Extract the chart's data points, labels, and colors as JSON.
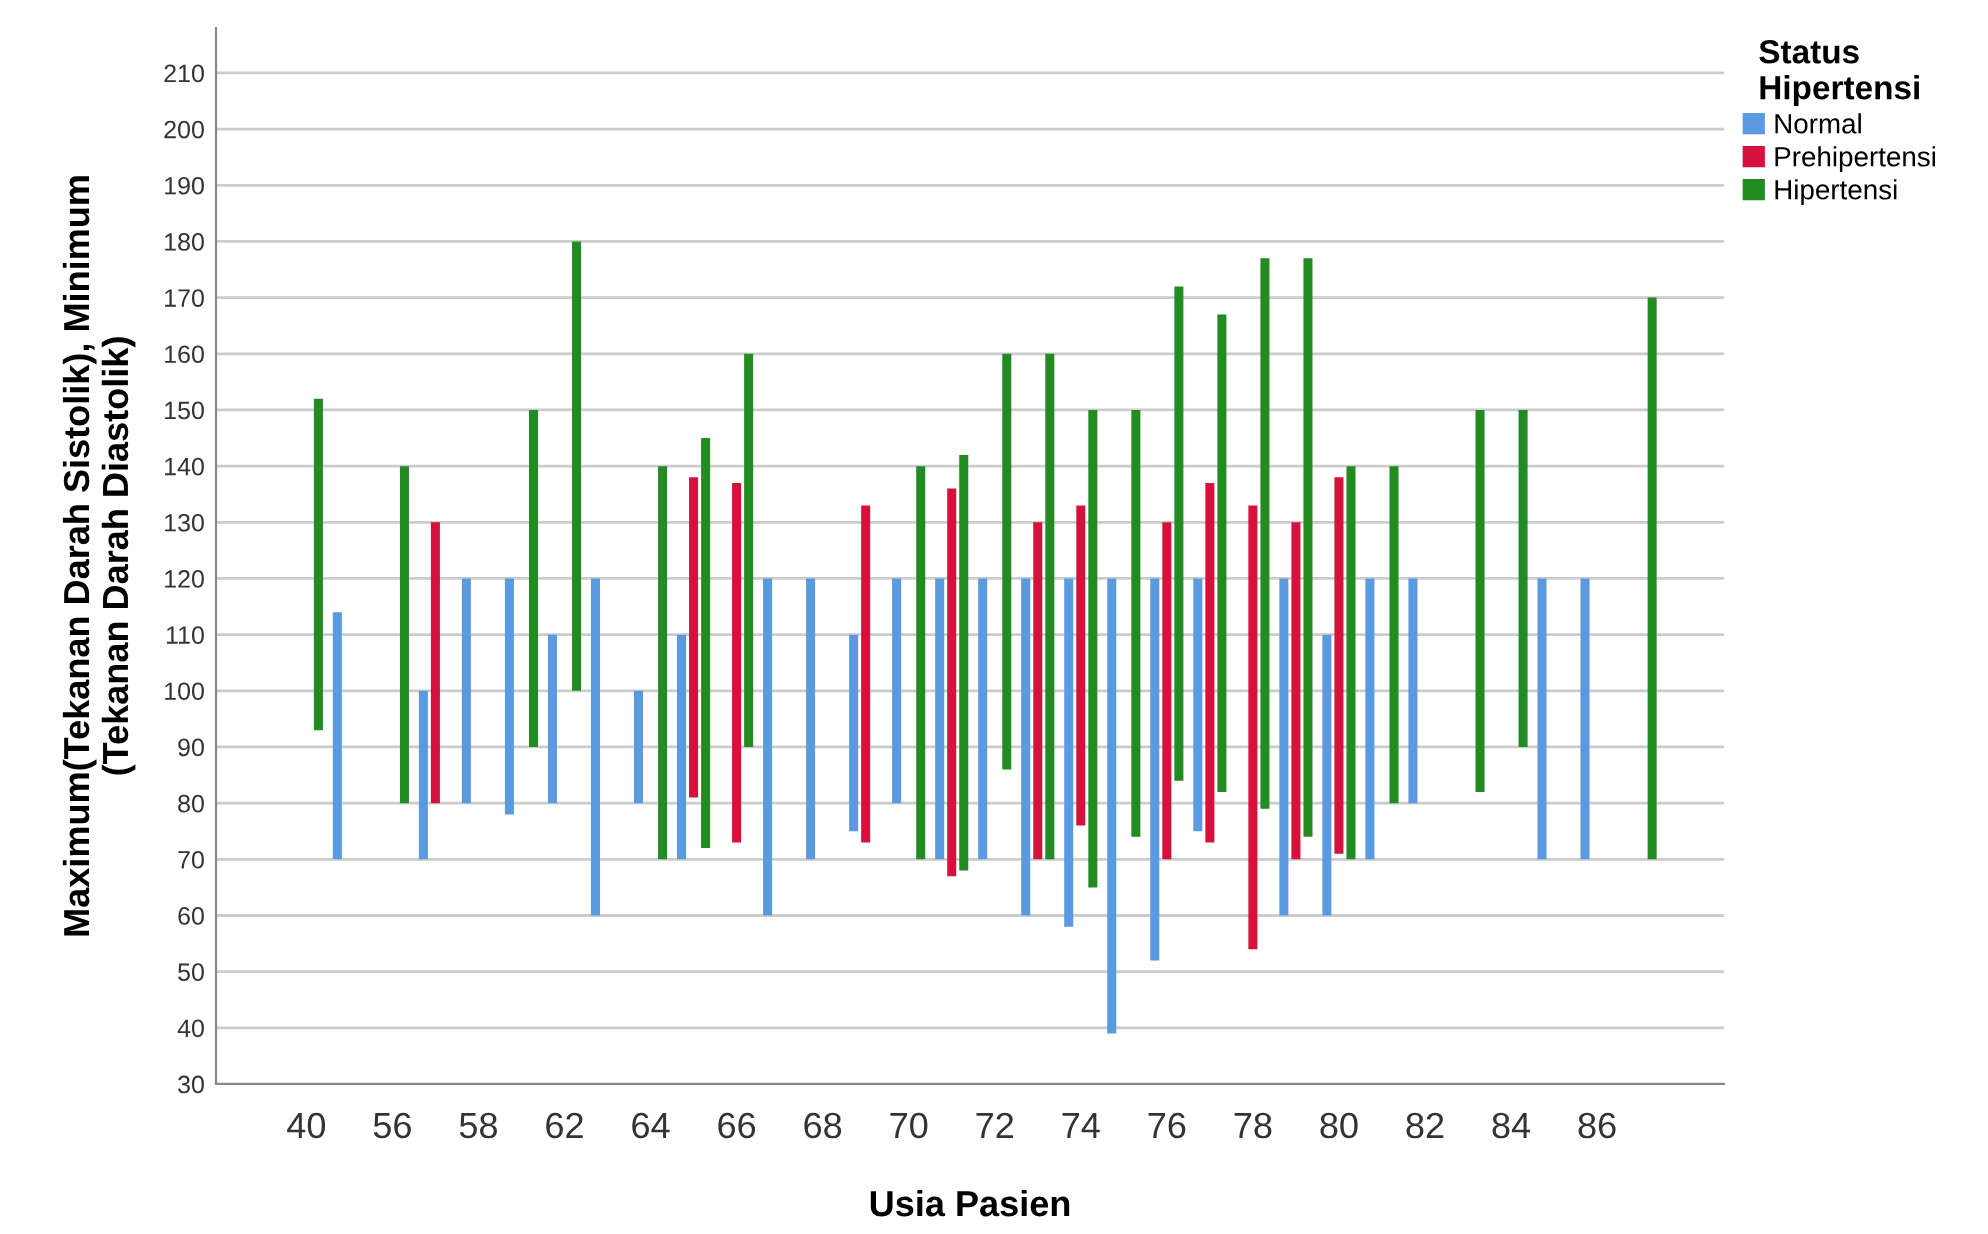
{
  "chart_data": {
    "type": "bar",
    "xlabel": "Usia Pasien",
    "ylabel": "Maximum(Tekanan Darah Sistolik), Minimum\n(Tekanan Darah Diastolik)",
    "legend_title": "Status\nHipertensi",
    "legend": "right",
    "grid": "y",
    "categories": [
      "40",
      null,
      "56",
      null,
      "58",
      null,
      "62",
      null,
      "64",
      null,
      "66",
      null,
      "68",
      null,
      "70",
      null,
      "72",
      null,
      "74",
      null,
      "76",
      null,
      "78",
      null,
      "80",
      null,
      "82",
      null,
      "84",
      null,
      "86",
      null
    ],
    "ylim": [
      30,
      218
    ],
    "yticks": [
      30,
      40,
      50,
      60,
      70,
      80,
      90,
      100,
      110,
      120,
      130,
      140,
      150,
      160,
      170,
      180,
      190,
      200,
      210
    ],
    "series": [
      {
        "name": "Normal",
        "color": "#5a9ae0",
        "base": [
          null,
          70,
          null,
          70,
          80,
          78,
          80,
          60,
          80,
          70,
          null,
          60,
          70,
          75,
          80,
          70,
          70,
          60,
          58,
          39,
          52,
          75,
          null,
          60,
          60,
          70,
          80,
          null,
          null,
          70,
          70,
          null
        ],
        "values": [
          null,
          44,
          null,
          30,
          40,
          42,
          30,
          60,
          20,
          40,
          null,
          60,
          50,
          35,
          40,
          50,
          50,
          60,
          62,
          81,
          68,
          45,
          null,
          60,
          50,
          50,
          40,
          null,
          null,
          50,
          50,
          null
        ]
      },
      {
        "name": "Prehipertensi",
        "color": "#d5123c",
        "base": [
          null,
          null,
          null,
          80,
          null,
          null,
          null,
          null,
          null,
          81,
          73,
          null,
          null,
          73,
          null,
          67,
          null,
          70,
          76,
          null,
          70,
          73,
          54,
          70,
          71,
          null,
          null,
          null,
          null,
          null,
          null,
          null
        ],
        "values": [
          null,
          null,
          null,
          50,
          null,
          null,
          null,
          null,
          null,
          57,
          64,
          null,
          null,
          60,
          null,
          69,
          null,
          60,
          57,
          null,
          60,
          64,
          79,
          60,
          67,
          null,
          null,
          null,
          null,
          null,
          null,
          null
        ]
      },
      {
        "name": "Hipertensi",
        "color": "#228b22",
        "base": [
          93,
          null,
          80,
          null,
          null,
          90,
          100,
          null,
          70,
          72,
          90,
          null,
          null,
          null,
          70,
          68,
          86,
          70,
          65,
          74,
          84,
          82,
          79,
          74,
          70,
          80,
          null,
          82,
          90,
          null,
          null,
          70
        ],
        "values": [
          59,
          null,
          60,
          null,
          null,
          60,
          80,
          null,
          70,
          73,
          70,
          null,
          null,
          null,
          70,
          74,
          74,
          90,
          85,
          76,
          88,
          85,
          98,
          103,
          70,
          60,
          null,
          68,
          60,
          null,
          null,
          100
        ]
      }
    ]
  }
}
